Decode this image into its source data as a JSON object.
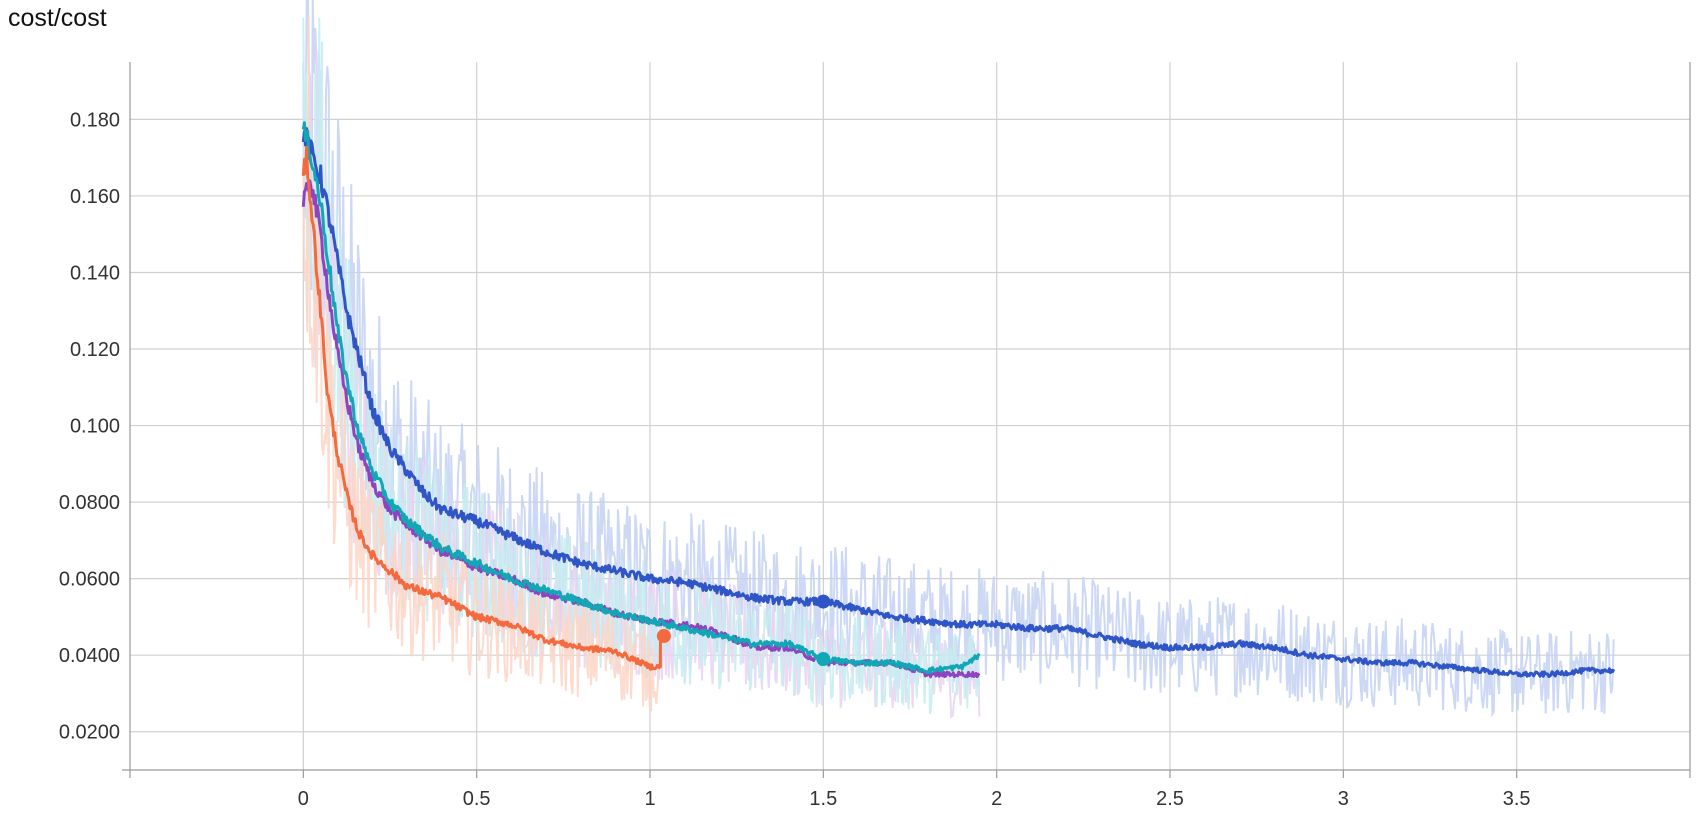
{
  "title": "cost/cost",
  "chart_data": {
    "type": "line",
    "title": "cost/cost",
    "xlabel": "",
    "ylabel": "",
    "xlim": [
      -0.5,
      4.0
    ],
    "ylim": [
      0.01,
      0.195
    ],
    "x_ticks": [
      0,
      0.5,
      1,
      1.5,
      2,
      2.5,
      3,
      3.5
    ],
    "x_tick_labels": [
      "0",
      "0.5",
      "1",
      "1.5",
      "2",
      "2.5",
      "3",
      "3.5"
    ],
    "y_ticks": [
      0.02,
      0.04,
      0.06,
      0.08,
      0.1,
      0.12,
      0.14,
      0.16,
      0.18
    ],
    "y_tick_labels": [
      "0.0200",
      "0.0400",
      "0.0600",
      "0.0800",
      "0.100",
      "0.120",
      "0.140",
      "0.160",
      "0.180"
    ],
    "grid": true,
    "legend": "none",
    "series": [
      {
        "color": "#2f55c6",
        "raw_color": "#c4d2f2",
        "smoothed": [
          [
            0.0,
            0.177
          ],
          [
            0.02,
            0.172
          ],
          [
            0.05,
            0.165
          ],
          [
            0.08,
            0.152
          ],
          [
            0.1,
            0.142
          ],
          [
            0.13,
            0.128
          ],
          [
            0.16,
            0.118
          ],
          [
            0.2,
            0.104
          ],
          [
            0.25,
            0.094
          ],
          [
            0.3,
            0.088
          ],
          [
            0.35,
            0.082
          ],
          [
            0.4,
            0.078
          ],
          [
            0.5,
            0.075
          ],
          [
            0.6,
            0.071
          ],
          [
            0.7,
            0.067
          ],
          [
            0.8,
            0.064
          ],
          [
            0.9,
            0.062
          ],
          [
            1.0,
            0.06
          ],
          [
            1.1,
            0.059
          ],
          [
            1.2,
            0.057
          ],
          [
            1.3,
            0.055
          ],
          [
            1.4,
            0.054
          ],
          [
            1.5,
            0.054
          ],
          [
            1.6,
            0.052
          ],
          [
            1.7,
            0.05
          ],
          [
            1.8,
            0.049
          ],
          [
            1.9,
            0.048
          ],
          [
            2.0,
            0.048
          ],
          [
            2.1,
            0.047
          ],
          [
            2.2,
            0.047
          ],
          [
            2.3,
            0.045
          ],
          [
            2.4,
            0.043
          ],
          [
            2.5,
            0.042
          ],
          [
            2.6,
            0.042
          ],
          [
            2.7,
            0.043
          ],
          [
            2.8,
            0.042
          ],
          [
            2.9,
            0.04
          ],
          [
            3.0,
            0.039
          ],
          [
            3.1,
            0.038
          ],
          [
            3.2,
            0.038
          ],
          [
            3.3,
            0.037
          ],
          [
            3.4,
            0.036
          ],
          [
            3.5,
            0.035
          ],
          [
            3.6,
            0.035
          ],
          [
            3.7,
            0.036
          ],
          [
            3.78,
            0.036
          ]
        ],
        "marker": [
          1.5,
          0.054
        ]
      },
      {
        "color": "#8e44c0",
        "raw_color": "#e8d3f2",
        "smoothed": [
          [
            0.0,
            0.157
          ],
          [
            0.02,
            0.165
          ],
          [
            0.05,
            0.15
          ],
          [
            0.08,
            0.13
          ],
          [
            0.1,
            0.118
          ],
          [
            0.13,
            0.105
          ],
          [
            0.16,
            0.094
          ],
          [
            0.2,
            0.085
          ],
          [
            0.25,
            0.078
          ],
          [
            0.3,
            0.074
          ],
          [
            0.4,
            0.067
          ],
          [
            0.5,
            0.063
          ],
          [
            0.6,
            0.06
          ],
          [
            0.7,
            0.056
          ],
          [
            0.8,
            0.054
          ],
          [
            0.9,
            0.051
          ],
          [
            1.0,
            0.049
          ],
          [
            1.1,
            0.048
          ],
          [
            1.2,
            0.046
          ],
          [
            1.3,
            0.042
          ],
          [
            1.4,
            0.042
          ],
          [
            1.5,
            0.038
          ],
          [
            1.6,
            0.038
          ],
          [
            1.7,
            0.038
          ],
          [
            1.8,
            0.035
          ],
          [
            1.9,
            0.035
          ],
          [
            1.95,
            0.035
          ]
        ]
      },
      {
        "color": "#12a7b4",
        "raw_color": "#c5ecf0",
        "smoothed": [
          [
            0.0,
            0.177
          ],
          [
            0.02,
            0.172
          ],
          [
            0.05,
            0.158
          ],
          [
            0.08,
            0.138
          ],
          [
            0.1,
            0.124
          ],
          [
            0.13,
            0.11
          ],
          [
            0.16,
            0.098
          ],
          [
            0.2,
            0.088
          ],
          [
            0.25,
            0.08
          ],
          [
            0.3,
            0.075
          ],
          [
            0.4,
            0.068
          ],
          [
            0.5,
            0.064
          ],
          [
            0.6,
            0.06
          ],
          [
            0.7,
            0.057
          ],
          [
            0.8,
            0.054
          ],
          [
            0.9,
            0.051
          ],
          [
            1.0,
            0.049
          ],
          [
            1.1,
            0.047
          ],
          [
            1.2,
            0.045
          ],
          [
            1.3,
            0.043
          ],
          [
            1.4,
            0.043
          ],
          [
            1.5,
            0.039
          ],
          [
            1.6,
            0.038
          ],
          [
            1.7,
            0.038
          ],
          [
            1.8,
            0.036
          ],
          [
            1.9,
            0.037
          ],
          [
            1.95,
            0.04
          ]
        ],
        "marker": [
          1.5,
          0.039
        ]
      },
      {
        "color": "#f26a3d",
        "raw_color": "#fdd5c6",
        "smoothed": [
          [
            0.0,
            0.165
          ],
          [
            0.01,
            0.17
          ],
          [
            0.03,
            0.15
          ],
          [
            0.05,
            0.13
          ],
          [
            0.07,
            0.108
          ],
          [
            0.1,
            0.092
          ],
          [
            0.13,
            0.08
          ],
          [
            0.16,
            0.072
          ],
          [
            0.2,
            0.066
          ],
          [
            0.25,
            0.062
          ],
          [
            0.3,
            0.058
          ],
          [
            0.4,
            0.055
          ],
          [
            0.5,
            0.05
          ],
          [
            0.6,
            0.048
          ],
          [
            0.7,
            0.044
          ],
          [
            0.8,
            0.042
          ],
          [
            0.9,
            0.041
          ],
          [
            0.95,
            0.039
          ],
          [
            1.0,
            0.037
          ],
          [
            1.03,
            0.037
          ],
          [
            1.03,
            0.045
          ]
        ],
        "marker": [
          1.04,
          0.045
        ]
      }
    ]
  }
}
